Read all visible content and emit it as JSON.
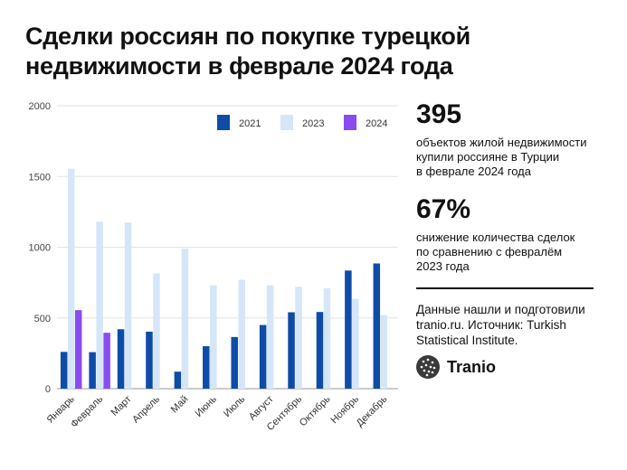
{
  "title": {
    "line1": "Сделки россиян по покупке турецкой",
    "line2": "недвижимости в феврале 2024 года"
  },
  "stats": [
    {
      "value": "395",
      "lines": [
        "объектов жилой недвижимости",
        "купили россияне в Турции",
        "в феврале 2024 года"
      ]
    },
    {
      "value": "67%",
      "lines": [
        "снижение количества сделок",
        "по сравнению с февралём",
        "2023 года"
      ]
    }
  ],
  "source": {
    "lines": [
      "Данные нашли и подготовили",
      "tranio.ru. Источник: Turkish",
      "Statistical Institute."
    ]
  },
  "brand": {
    "name": "Tranio",
    "icon": "tranio-logo-icon"
  },
  "chart_data": {
    "type": "bar",
    "categories": [
      "Январь",
      "Февраль",
      "Март",
      "Апрель",
      "Май",
      "Июнь",
      "Июль",
      "Август",
      "Сентябрь",
      "Октябрь",
      "Ноябрь",
      "Декабрь"
    ],
    "series": [
      {
        "name": "2021",
        "color": "#0e4ca8",
        "values": [
          260,
          258,
          420,
          403,
          120,
          300,
          365,
          450,
          540,
          542,
          835,
          885
        ]
      },
      {
        "name": "2023",
        "color": "#d5e6f9",
        "values": [
          1555,
          1180,
          1175,
          815,
          990,
          730,
          770,
          730,
          720,
          710,
          635,
          520
        ]
      },
      {
        "name": "2024",
        "color": "#8a4bf0",
        "values": [
          555,
          395,
          null,
          null,
          null,
          null,
          null,
          null,
          null,
          null,
          null,
          null
        ]
      }
    ],
    "yticks": [
      "0",
      "500",
      "1000",
      "1500",
      "2000"
    ],
    "ylim": [
      0,
      2000
    ],
    "grid": true,
    "legend_position": "top-right"
  }
}
